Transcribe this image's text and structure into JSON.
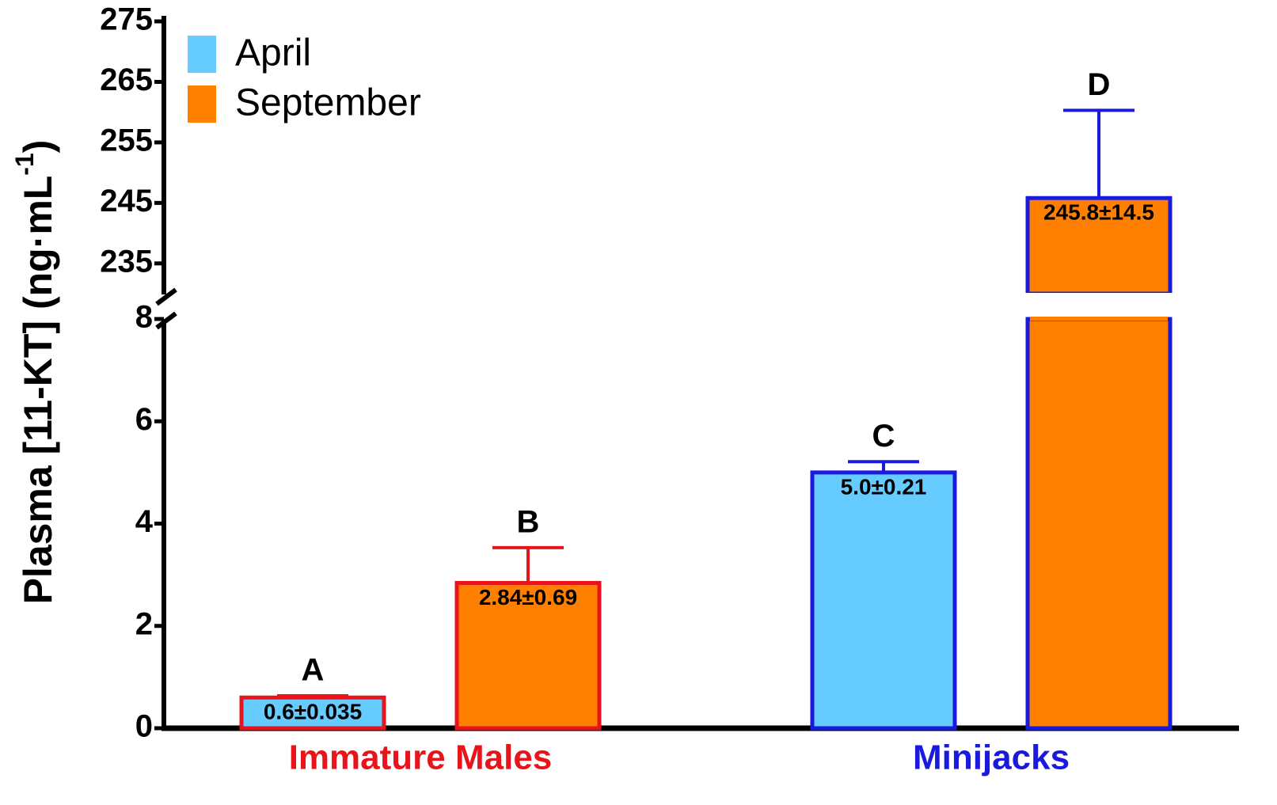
{
  "chart_data": {
    "type": "bar",
    "ylabel": "Plasma [11-KT] (ng·mL",
    "ylabel_sup": "-1",
    "ylabel_end": ")",
    "categories": [
      "Immature Males",
      "Minijacks"
    ],
    "category_colors": [
      "#e8141b",
      "#1a1adc"
    ],
    "series": [
      {
        "name": "April",
        "color": "#66ccff",
        "values": [
          0.6,
          5.0
        ],
        "errors": [
          0.035,
          0.21
        ],
        "value_labels": [
          "0.6±0.035",
          "5.0±0.21"
        ],
        "significance_labels": [
          "A",
          "C"
        ]
      },
      {
        "name": "September",
        "color": "#ff8000",
        "values": [
          2.84,
          245.8
        ],
        "errors": [
          0.69,
          14.5
        ],
        "value_labels": [
          "2.84±0.69",
          "245.8±14.5"
        ],
        "significance_labels": [
          "B",
          "D"
        ]
      }
    ],
    "y_segments": [
      {
        "ylim": [
          0,
          8
        ],
        "yticks": [
          0,
          2,
          4,
          6,
          8
        ]
      },
      {
        "ylim": [
          230,
          275
        ],
        "yticks": [
          235,
          245,
          255,
          265,
          275
        ]
      }
    ],
    "legend": "top-left"
  }
}
